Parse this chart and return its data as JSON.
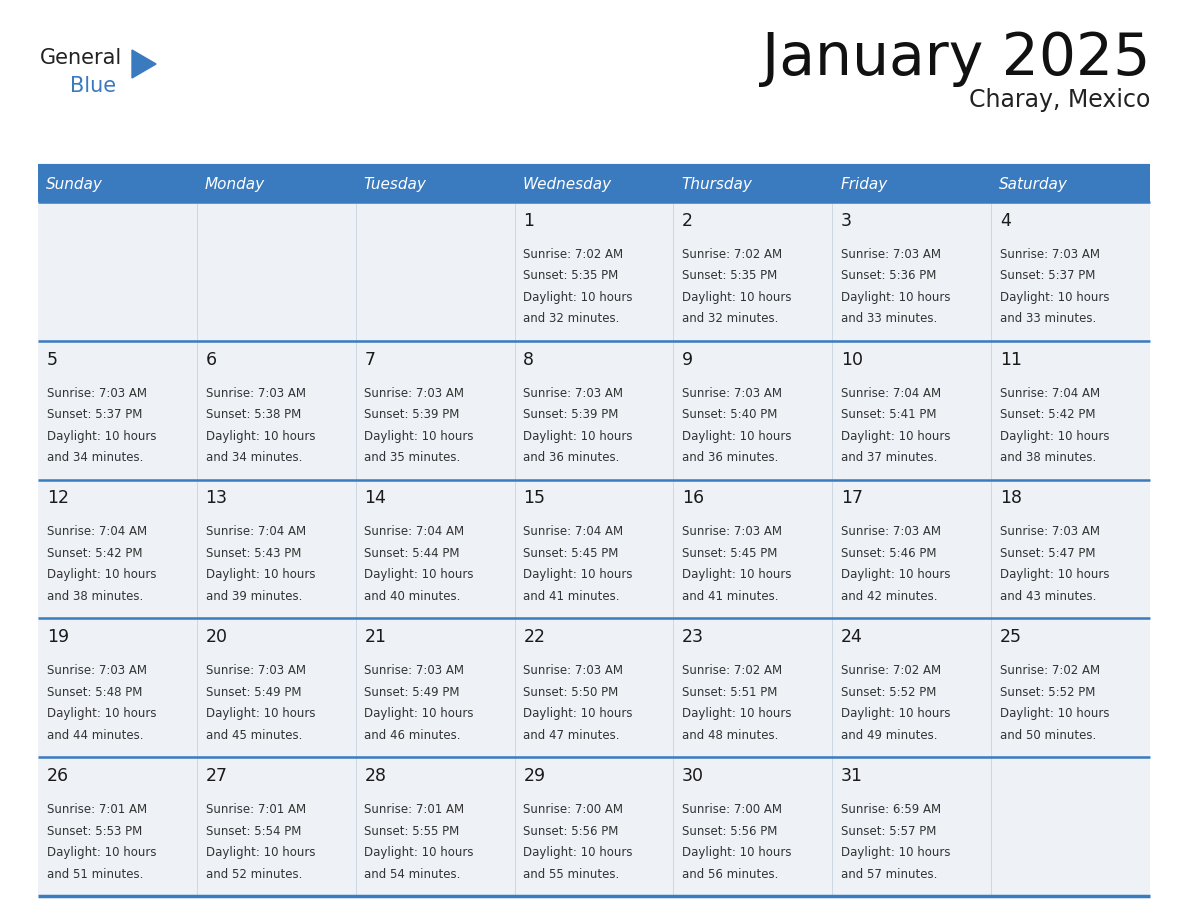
{
  "title": "January 2025",
  "subtitle": "Charay, Mexico",
  "header_color": "#3a7abf",
  "header_text_color": "#ffffff",
  "cell_bg_color": "#eef2f7",
  "border_color": "#3a7abf",
  "text_color": "#333333",
  "day_number_color": "#1a1a1a",
  "day_names": [
    "Sunday",
    "Monday",
    "Tuesday",
    "Wednesday",
    "Thursday",
    "Friday",
    "Saturday"
  ],
  "days": [
    {
      "day": 1,
      "col": 3,
      "row": 0,
      "sunrise": "7:02 AM",
      "sunset": "5:35 PM",
      "daylight": "10 hours and 32 minutes."
    },
    {
      "day": 2,
      "col": 4,
      "row": 0,
      "sunrise": "7:02 AM",
      "sunset": "5:35 PM",
      "daylight": "10 hours and 32 minutes."
    },
    {
      "day": 3,
      "col": 5,
      "row": 0,
      "sunrise": "7:03 AM",
      "sunset": "5:36 PM",
      "daylight": "10 hours and 33 minutes."
    },
    {
      "day": 4,
      "col": 6,
      "row": 0,
      "sunrise": "7:03 AM",
      "sunset": "5:37 PM",
      "daylight": "10 hours and 33 minutes."
    },
    {
      "day": 5,
      "col": 0,
      "row": 1,
      "sunrise": "7:03 AM",
      "sunset": "5:37 PM",
      "daylight": "10 hours and 34 minutes."
    },
    {
      "day": 6,
      "col": 1,
      "row": 1,
      "sunrise": "7:03 AM",
      "sunset": "5:38 PM",
      "daylight": "10 hours and 34 minutes."
    },
    {
      "day": 7,
      "col": 2,
      "row": 1,
      "sunrise": "7:03 AM",
      "sunset": "5:39 PM",
      "daylight": "10 hours and 35 minutes."
    },
    {
      "day": 8,
      "col": 3,
      "row": 1,
      "sunrise": "7:03 AM",
      "sunset": "5:39 PM",
      "daylight": "10 hours and 36 minutes."
    },
    {
      "day": 9,
      "col": 4,
      "row": 1,
      "sunrise": "7:03 AM",
      "sunset": "5:40 PM",
      "daylight": "10 hours and 36 minutes."
    },
    {
      "day": 10,
      "col": 5,
      "row": 1,
      "sunrise": "7:04 AM",
      "sunset": "5:41 PM",
      "daylight": "10 hours and 37 minutes."
    },
    {
      "day": 11,
      "col": 6,
      "row": 1,
      "sunrise": "7:04 AM",
      "sunset": "5:42 PM",
      "daylight": "10 hours and 38 minutes."
    },
    {
      "day": 12,
      "col": 0,
      "row": 2,
      "sunrise": "7:04 AM",
      "sunset": "5:42 PM",
      "daylight": "10 hours and 38 minutes."
    },
    {
      "day": 13,
      "col": 1,
      "row": 2,
      "sunrise": "7:04 AM",
      "sunset": "5:43 PM",
      "daylight": "10 hours and 39 minutes."
    },
    {
      "day": 14,
      "col": 2,
      "row": 2,
      "sunrise": "7:04 AM",
      "sunset": "5:44 PM",
      "daylight": "10 hours and 40 minutes."
    },
    {
      "day": 15,
      "col": 3,
      "row": 2,
      "sunrise": "7:04 AM",
      "sunset": "5:45 PM",
      "daylight": "10 hours and 41 minutes."
    },
    {
      "day": 16,
      "col": 4,
      "row": 2,
      "sunrise": "7:03 AM",
      "sunset": "5:45 PM",
      "daylight": "10 hours and 41 minutes."
    },
    {
      "day": 17,
      "col": 5,
      "row": 2,
      "sunrise": "7:03 AM",
      "sunset": "5:46 PM",
      "daylight": "10 hours and 42 minutes."
    },
    {
      "day": 18,
      "col": 6,
      "row": 2,
      "sunrise": "7:03 AM",
      "sunset": "5:47 PM",
      "daylight": "10 hours and 43 minutes."
    },
    {
      "day": 19,
      "col": 0,
      "row": 3,
      "sunrise": "7:03 AM",
      "sunset": "5:48 PM",
      "daylight": "10 hours and 44 minutes."
    },
    {
      "day": 20,
      "col": 1,
      "row": 3,
      "sunrise": "7:03 AM",
      "sunset": "5:49 PM",
      "daylight": "10 hours and 45 minutes."
    },
    {
      "day": 21,
      "col": 2,
      "row": 3,
      "sunrise": "7:03 AM",
      "sunset": "5:49 PM",
      "daylight": "10 hours and 46 minutes."
    },
    {
      "day": 22,
      "col": 3,
      "row": 3,
      "sunrise": "7:03 AM",
      "sunset": "5:50 PM",
      "daylight": "10 hours and 47 minutes."
    },
    {
      "day": 23,
      "col": 4,
      "row": 3,
      "sunrise": "7:02 AM",
      "sunset": "5:51 PM",
      "daylight": "10 hours and 48 minutes."
    },
    {
      "day": 24,
      "col": 5,
      "row": 3,
      "sunrise": "7:02 AM",
      "sunset": "5:52 PM",
      "daylight": "10 hours and 49 minutes."
    },
    {
      "day": 25,
      "col": 6,
      "row": 3,
      "sunrise": "7:02 AM",
      "sunset": "5:52 PM",
      "daylight": "10 hours and 50 minutes."
    },
    {
      "day": 26,
      "col": 0,
      "row": 4,
      "sunrise": "7:01 AM",
      "sunset": "5:53 PM",
      "daylight": "10 hours and 51 minutes."
    },
    {
      "day": 27,
      "col": 1,
      "row": 4,
      "sunrise": "7:01 AM",
      "sunset": "5:54 PM",
      "daylight": "10 hours and 52 minutes."
    },
    {
      "day": 28,
      "col": 2,
      "row": 4,
      "sunrise": "7:01 AM",
      "sunset": "5:55 PM",
      "daylight": "10 hours and 54 minutes."
    },
    {
      "day": 29,
      "col": 3,
      "row": 4,
      "sunrise": "7:00 AM",
      "sunset": "5:56 PM",
      "daylight": "10 hours and 55 minutes."
    },
    {
      "day": 30,
      "col": 4,
      "row": 4,
      "sunrise": "7:00 AM",
      "sunset": "5:56 PM",
      "daylight": "10 hours and 56 minutes."
    },
    {
      "day": 31,
      "col": 5,
      "row": 4,
      "sunrise": "6:59 AM",
      "sunset": "5:57 PM",
      "daylight": "10 hours and 57 minutes."
    }
  ],
  "logo_general_color": "#222222",
  "logo_blue_color": "#3a7abf",
  "logo_triangle_color": "#3a7abf",
  "figwidth": 11.88,
  "figheight": 9.18,
  "dpi": 100
}
